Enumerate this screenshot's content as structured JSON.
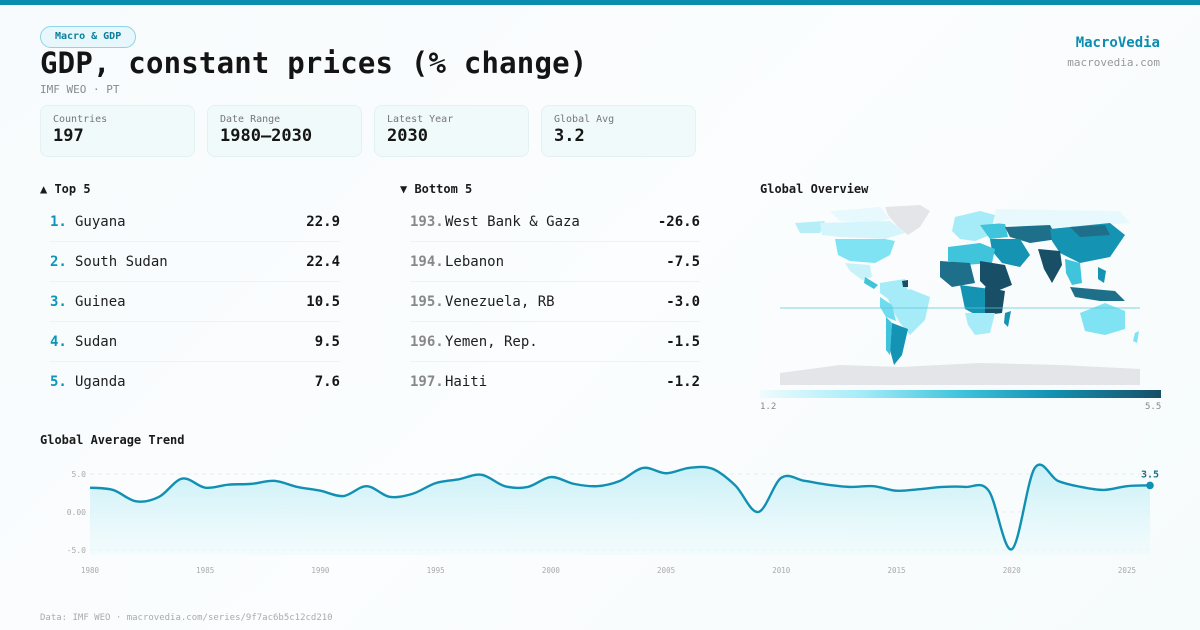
{
  "header": {
    "category": "Macro & GDP",
    "title": "GDP, constant prices (% change)",
    "subtitle": "IMF WEO · PT",
    "brand": "MacroVedia",
    "brand_url": "macrovedia.com"
  },
  "stats": [
    {
      "label": "Countries",
      "value": "197"
    },
    {
      "label": "Date Range",
      "value": "1980–2030"
    },
    {
      "label": "Latest Year",
      "value": "2030"
    },
    {
      "label": "Global Avg",
      "value": "3.2"
    }
  ],
  "top5": {
    "heading": "▲ Top 5",
    "items": [
      {
        "rank": "1.",
        "name": "Guyana",
        "value": "22.9"
      },
      {
        "rank": "2.",
        "name": "South Sudan",
        "value": "22.4"
      },
      {
        "rank": "3.",
        "name": "Guinea",
        "value": "10.5"
      },
      {
        "rank": "4.",
        "name": "Sudan",
        "value": "9.5"
      },
      {
        "rank": "5.",
        "name": "Uganda",
        "value": "7.6"
      }
    ]
  },
  "bottom5": {
    "heading": "▼ Bottom 5",
    "items": [
      {
        "rank": "193.",
        "name": "West Bank & Gaza",
        "value": "-26.6"
      },
      {
        "rank": "194.",
        "name": "Lebanon",
        "value": "-7.5"
      },
      {
        "rank": "195.",
        "name": "Venezuela, RB",
        "value": "-3.0"
      },
      {
        "rank": "196.",
        "name": "Yemen, Rep.",
        "value": "-1.5"
      },
      {
        "rank": "197.",
        "name": "Haiti",
        "value": "-1.2"
      }
    ]
  },
  "map": {
    "title": "Global Overview",
    "legend_min": "1.2",
    "legend_max": "5.5",
    "colors": {
      "low": "#e8f9fd",
      "mid": "#3fc4dc",
      "high": "#184f66",
      "nodata": "#e3e5e8"
    }
  },
  "footer": "Data: IMF WEO · macrovedia.com/series/9f7ac6b5c12cd210",
  "colors": {
    "accent": "#0b8db0",
    "line": "#1190b4"
  },
  "chart_data": {
    "type": "area",
    "title": "Global Average Trend",
    "xlabel": "",
    "ylabel": "",
    "x": [
      1980,
      1981,
      1982,
      1983,
      1984,
      1985,
      1986,
      1987,
      1988,
      1989,
      1990,
      1991,
      1992,
      1993,
      1994,
      1995,
      1996,
      1997,
      1998,
      1999,
      2000,
      2001,
      2002,
      2003,
      2004,
      2005,
      2006,
      2007,
      2008,
      2009,
      2010,
      2011,
      2012,
      2013,
      2014,
      2015,
      2016,
      2017,
      2018,
      2019,
      2020,
      2021,
      2022,
      2023,
      2024,
      2025,
      2026
    ],
    "values": [
      3.2,
      2.9,
      1.4,
      2.0,
      4.4,
      3.2,
      3.6,
      3.7,
      4.1,
      3.3,
      2.8,
      2.1,
      3.4,
      2.0,
      2.4,
      3.8,
      4.3,
      4.9,
      3.4,
      3.3,
      4.6,
      3.7,
      3.4,
      4.1,
      5.8,
      5.1,
      5.8,
      5.7,
      3.5,
      0.0,
      4.5,
      4.1,
      3.6,
      3.3,
      3.4,
      2.8,
      3.0,
      3.3,
      3.3,
      2.8,
      -4.9,
      5.8,
      4.1,
      3.3,
      2.9,
      3.4,
      3.5
    ],
    "ylim": [
      -6.5,
      6.5
    ],
    "xlim": [
      1980,
      2026
    ],
    "yticks": [
      {
        "v": 5.0,
        "label": "5.0"
      },
      {
        "v": 0,
        "label": "0.00"
      },
      {
        "v": -5.0,
        "label": "-5.0"
      }
    ],
    "xticks": [
      "1980",
      "1985",
      "1990",
      "1995",
      "2000",
      "2005",
      "2010",
      "2015",
      "2020",
      "2025"
    ],
    "last_label": "3.5",
    "grid": true
  }
}
